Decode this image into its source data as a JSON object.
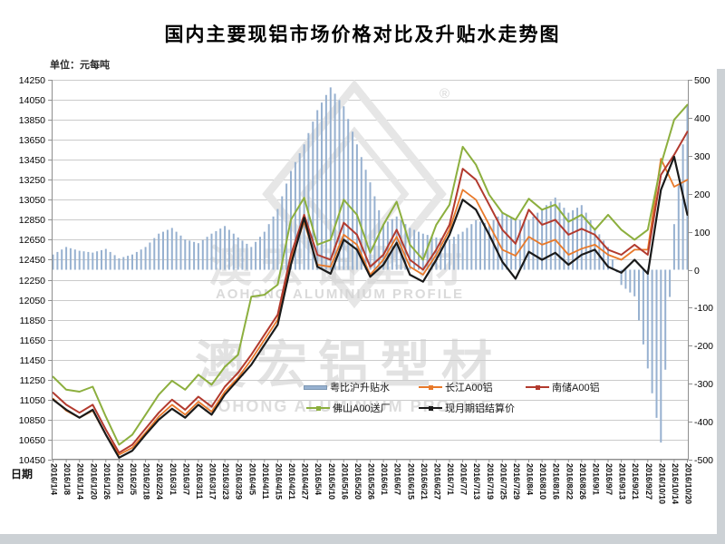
{
  "page": {
    "title": "国内主要现铝市场价格对比及升贴水走势图",
    "unit_label": "单位：元每吨",
    "x_axis_title": "日期"
  },
  "watermark": {
    "cn_text": "澳宏铝型材",
    "en_text": "AOHONG ALUMINIUM PROFILE",
    "registered_mark": "®",
    "color": "#d0d0d0"
  },
  "legend": {
    "items": [
      {
        "label": "粤比沪升贴水",
        "type": "bar",
        "color": "#97B1D0"
      },
      {
        "label": "长江A00铝",
        "type": "line",
        "color": "#E8792A"
      },
      {
        "label": "南储A00铝",
        "type": "line",
        "color": "#B23A2E"
      },
      {
        "label": "佛山A00送厂",
        "type": "line",
        "color": "#8CAF3E"
      },
      {
        "label": "现月期铝结算价",
        "type": "line",
        "color": "#1A1A1A"
      }
    ]
  },
  "chart_data": {
    "type": "combo",
    "title": "国内主要现铝市场价格对比及升贴水走势图",
    "x_label": "日期",
    "y_left_label": "单位：元每吨",
    "grid": true,
    "legend_position": "bottom-center-inside",
    "x_categories": [
      "2016/1/4",
      "2016/1/8",
      "2016/1/14",
      "2016/1/20",
      "2016/1/26",
      "2016/2/1",
      "2016/2/5",
      "2016/2/18",
      "2016/2/24",
      "2016/3/1",
      "2016/3/7",
      "2016/3/11",
      "2016/3/17",
      "2016/3/23",
      "2016/3/29",
      "2016/4/5",
      "2016/4/11",
      "2016/4/15",
      "2016/4/21",
      "2016/4/27",
      "2016/5/4",
      "2016/5/10",
      "2016/5/16",
      "2016/5/20",
      "2016/5/26",
      "2016/6/1",
      "2016/6/7",
      "2016/6/15",
      "2016/6/21",
      "2016/6/27",
      "2016/7/1",
      "2016/7/7",
      "2016/7/13",
      "2016/7/19",
      "2016/7/25",
      "2016/7/29",
      "2016/8/4",
      "2016/8/10",
      "2016/8/16",
      "2016/8/22",
      "2016/8/26",
      "2016/9/1",
      "2016/9/7",
      "2016/9/13",
      "2016/9/21",
      "2016/9/27",
      "2016/10/10",
      "2016/10/14",
      "2016/10/20"
    ],
    "left_axis": {
      "min": 10450,
      "max": 14250,
      "step": 200,
      "ticks": [
        "14250",
        "14050",
        "13850",
        "13650",
        "13450",
        "13250",
        "13050",
        "12850",
        "12650",
        "12450",
        "12250",
        "12050",
        "11850",
        "11650",
        "11450",
        "11250",
        "11050",
        "10850",
        "10650",
        "10450"
      ]
    },
    "right_axis": {
      "min": -500,
      "max": 500,
      "step": 100,
      "ticks": [
        "500",
        "400",
        "300",
        "200",
        "100",
        "0",
        "-100",
        "-200",
        "-300",
        "-400",
        "-500"
      ]
    },
    "series": [
      {
        "name": "粤比沪升贴水",
        "type": "bar",
        "axis": "right",
        "color": "#97B1D0",
        "values": [
          40,
          60,
          50,
          45,
          55,
          30,
          40,
          60,
          95,
          110,
          80,
          70,
          95,
          115,
          85,
          60,
          100,
          160,
          260,
          330,
          420,
          480,
          430,
          330,
          230,
          120,
          140,
          110,
          95,
          85,
          80,
          100,
          130,
          120,
          150,
          130,
          130,
          160,
          190,
          150,
          170,
          110,
          60,
          -40,
          -70,
          -260,
          -455,
          120,
          435
        ]
      },
      {
        "name": "长江A00铝",
        "type": "line",
        "axis": "left",
        "color": "#E8792A",
        "values": [
          11060,
          10940,
          10870,
          10940,
          10700,
          10500,
          10570,
          10720,
          10880,
          11000,
          10900,
          11030,
          10930,
          11130,
          11270,
          11450,
          11650,
          11850,
          12450,
          12830,
          12400,
          12380,
          12700,
          12600,
          12300,
          12450,
          12680,
          12380,
          12300,
          12500,
          12750,
          13150,
          13050,
          12800,
          12550,
          12490,
          12680,
          12600,
          12650,
          12500,
          12560,
          12600,
          12500,
          12450,
          12550,
          12550,
          13460,
          13180,
          13250
        ]
      },
      {
        "name": "南储A00铝",
        "type": "line",
        "axis": "left",
        "color": "#B23A2E",
        "values": [
          11120,
          11000,
          10920,
          11000,
          10750,
          10520,
          10600,
          10760,
          10920,
          11050,
          10950,
          11080,
          10980,
          11180,
          11320,
          11500,
          11700,
          11900,
          12500,
          12900,
          12500,
          12450,
          12820,
          12700,
          12380,
          12500,
          12750,
          12450,
          12350,
          12550,
          12800,
          13360,
          13250,
          13000,
          12750,
          12610,
          12950,
          12800,
          12850,
          12700,
          12760,
          12700,
          12550,
          12500,
          12600,
          12500,
          13300,
          13500,
          13730
        ]
      },
      {
        "name": "佛山A00送厂",
        "type": "line",
        "axis": "left",
        "color": "#8CAF3E",
        "values": [
          11280,
          11150,
          11130,
          11180,
          10880,
          10600,
          10700,
          10900,
          11100,
          11240,
          11150,
          11300,
          11200,
          11380,
          11500,
          12080,
          12100,
          12200,
          12850,
          13070,
          12600,
          12650,
          13050,
          12900,
          12520,
          12800,
          13030,
          12600,
          12450,
          12800,
          13000,
          13580,
          13400,
          13100,
          12920,
          12850,
          13060,
          12950,
          13000,
          12830,
          12900,
          12750,
          12900,
          12750,
          12650,
          12750,
          13400,
          13850,
          14000
        ]
      },
      {
        "name": "现月期铝结算价",
        "type": "line",
        "axis": "left",
        "color": "#1A1A1A",
        "values": [
          11050,
          10950,
          10870,
          10950,
          10700,
          10470,
          10540,
          10700,
          10850,
          10960,
          10870,
          11000,
          10900,
          11100,
          11250,
          11400,
          11600,
          11800,
          12400,
          12870,
          12380,
          12310,
          12650,
          12550,
          12280,
          12400,
          12620,
          12300,
          12230,
          12450,
          12700,
          13050,
          12950,
          12700,
          12430,
          12260,
          12530,
          12450,
          12520,
          12400,
          12500,
          12550,
          12380,
          12320,
          12450,
          12310,
          13150,
          13480,
          12900
        ]
      }
    ]
  }
}
